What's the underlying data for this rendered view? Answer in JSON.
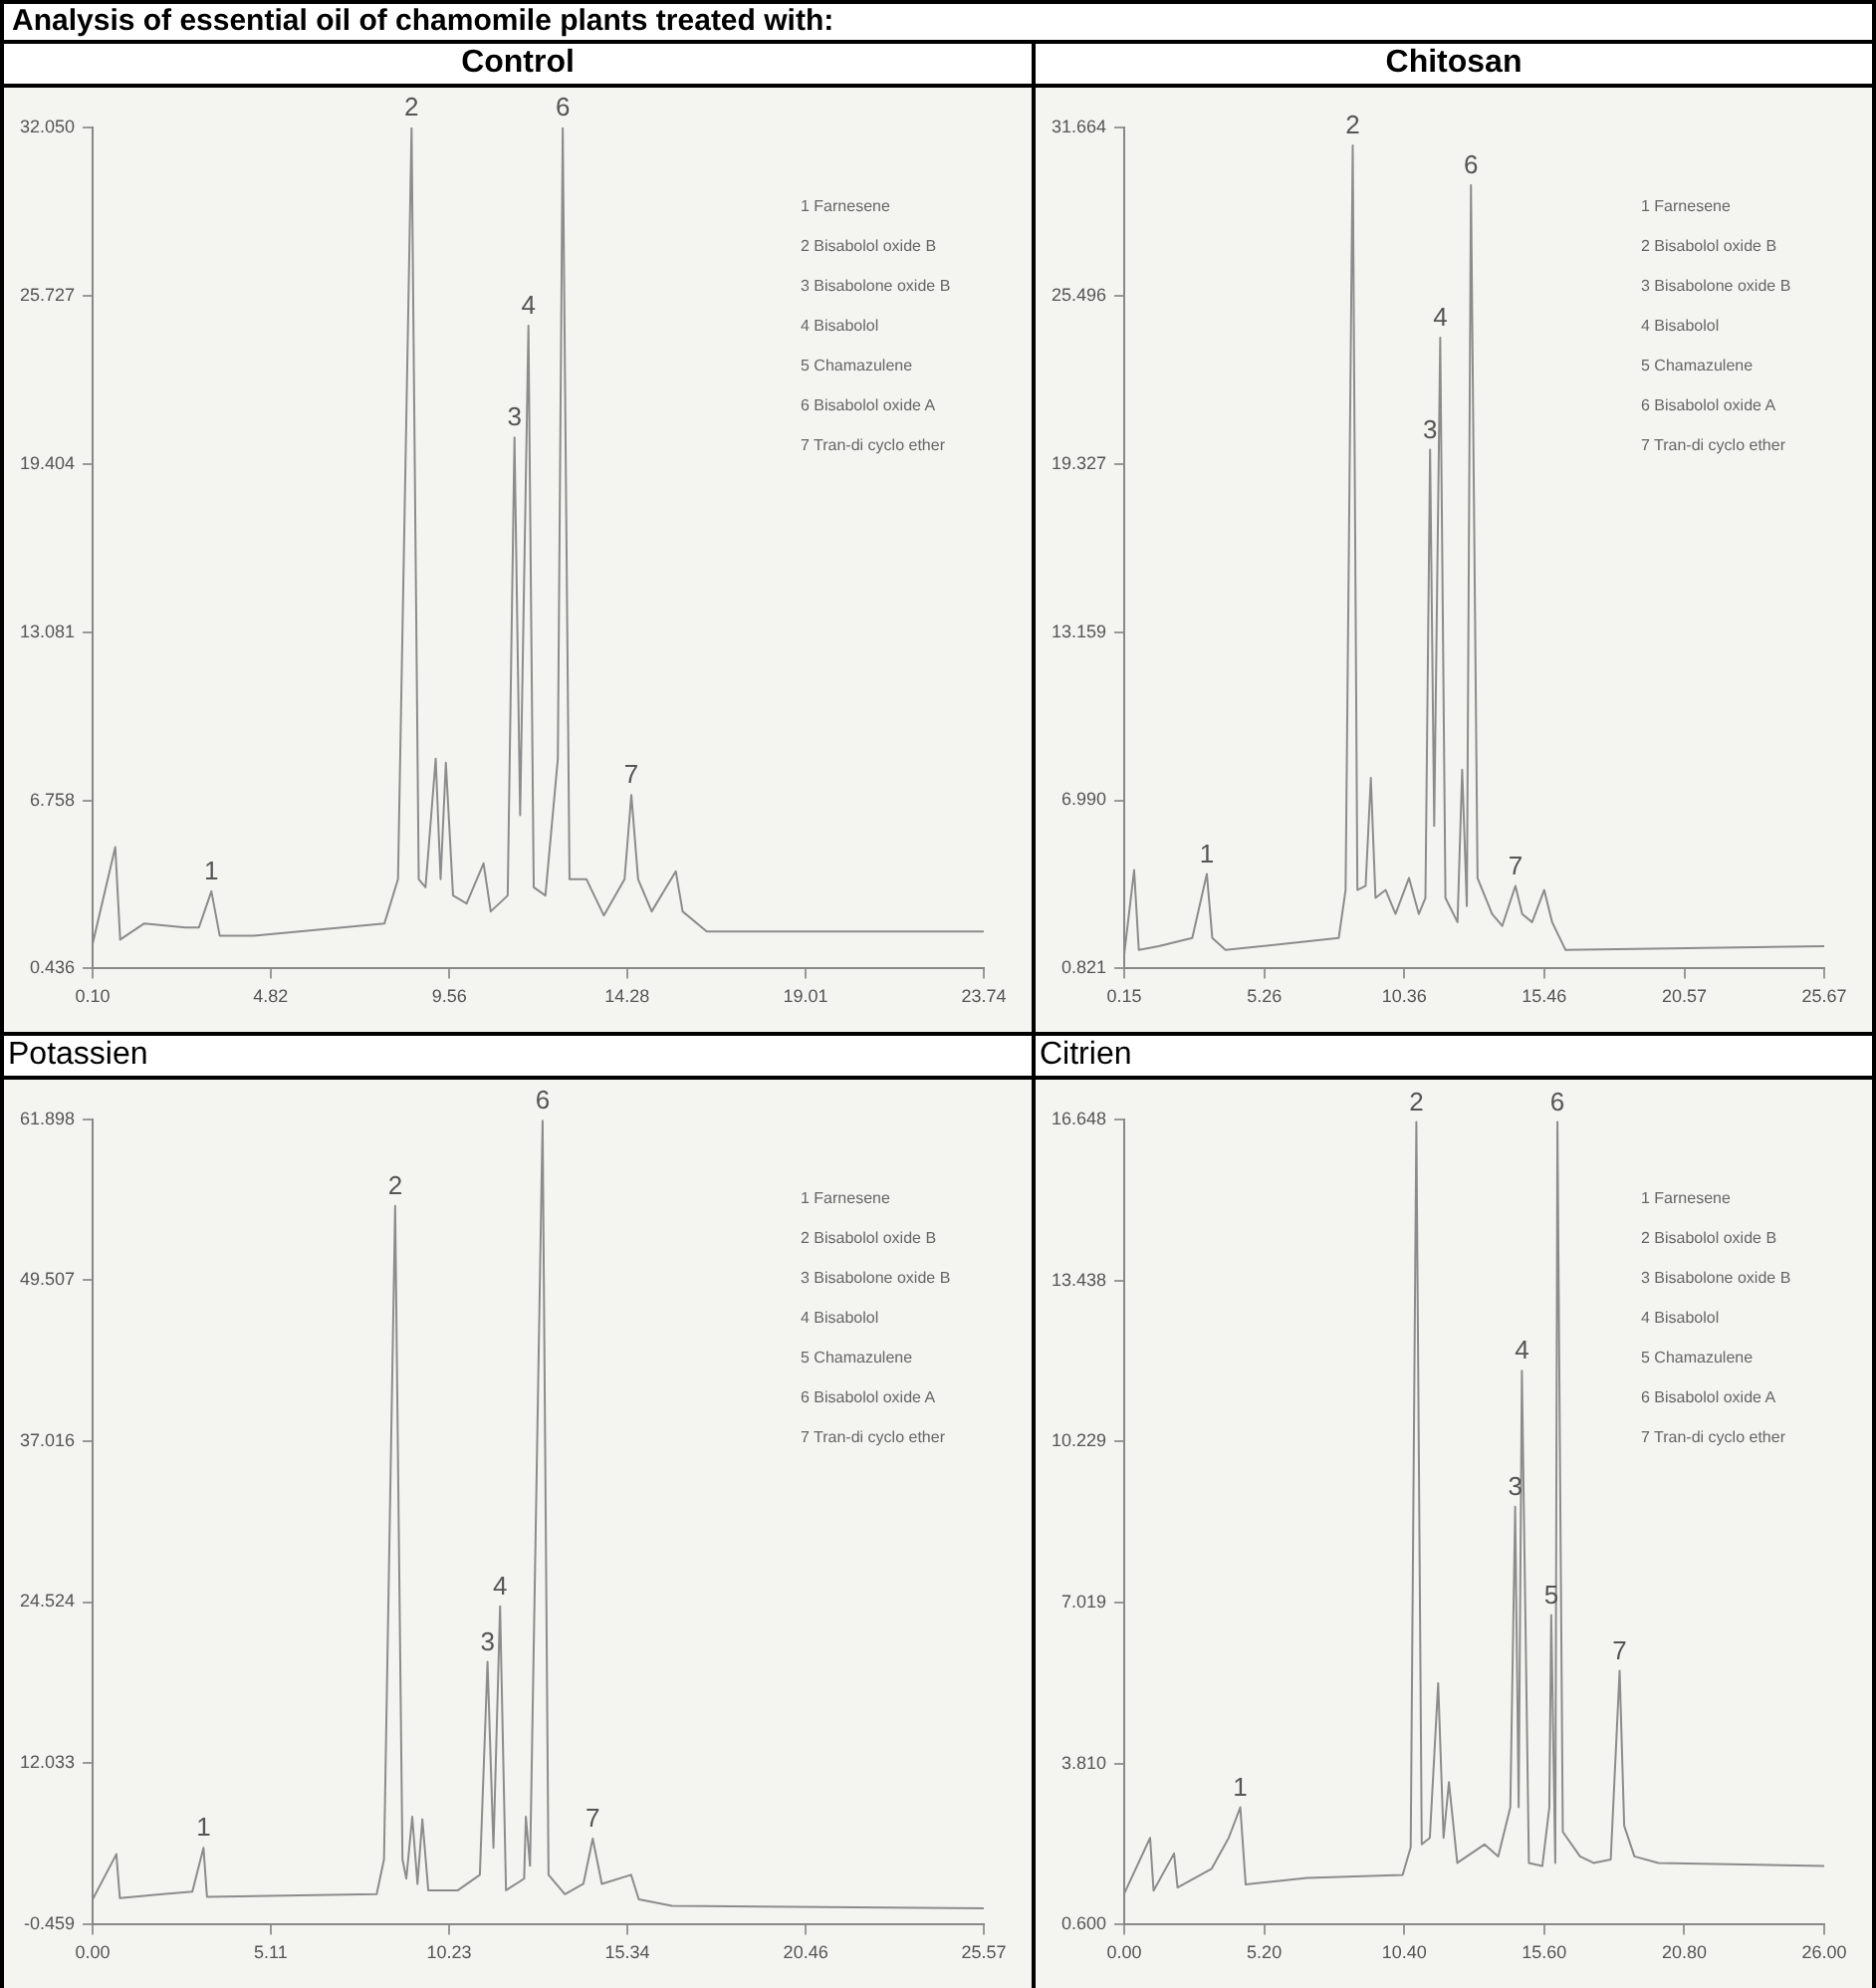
{
  "chart_data": [
    {
      "type": "line",
      "title": "Analysis of essential oil of chamomile plants treated with:",
      "subtitle": "Control",
      "x": [
        0.1,
        0.7,
        0.83,
        1.47,
        2.56,
        2.92,
        3.25,
        3.47,
        4.38,
        7.84,
        8.2,
        8.56,
        8.75,
        8.93,
        9.2,
        9.33,
        9.47,
        9.66,
        10.02,
        10.47,
        10.66,
        11.11,
        11.29,
        11.44,
        11.66,
        11.8,
        12.11,
        12.44,
        12.57,
        12.75,
        13.2,
        13.66,
        14.21,
        14.39,
        14.57,
        14.93,
        15.57,
        15.75,
        16.39,
        23.74
      ],
      "series": [
        {
          "color": "#8c8c8c",
          "values": [
            1.37,
            5.0,
            1.52,
            2.13,
            1.98,
            1.98,
            3.34,
            1.67,
            1.67,
            2.13,
            3.79,
            32.05,
            3.79,
            3.49,
            8.32,
            3.79,
            8.17,
            3.18,
            2.88,
            4.39,
            2.58,
            3.18,
            20.4,
            6.2,
            24.6,
            3.49,
            3.18,
            8.32,
            32.05,
            3.79,
            3.79,
            2.43,
            3.79,
            6.96,
            3.79,
            2.58,
            4.09,
            2.58,
            1.83,
            1.83
          ]
        }
      ],
      "xlim": [
        0.1,
        23.74
      ],
      "xticks": [
        {
          "value": 0.1,
          "label": "0.10"
        },
        4.82,
        9.56,
        14.28,
        19.01,
        23.74
      ],
      "ylim": [
        0.436,
        32.05
      ],
      "yticks": [
        0.436,
        6.758,
        13.081,
        19.404,
        25.727,
        {
          "value": 32.05,
          "label": "32.050"
        }
      ],
      "annotations": [
        {
          "text": "1",
          "x": 3.25,
          "y": 3.34
        },
        {
          "text": "2",
          "x": 8.56,
          "y": 32.05
        },
        {
          "text": "3",
          "x": 11.29,
          "y": 20.4
        },
        {
          "text": "4",
          "x": 11.66,
          "y": 24.6
        },
        {
          "text": "6",
          "x": 12.57,
          "y": 32.05
        },
        {
          "text": "7",
          "x": 14.39,
          "y": 6.96
        },
        "1 Farnesene",
        "2 Bisabolol oxide B",
        "3 Bisabolone oxide B",
        "4 Bisabolol",
        "5 Chamazulene",
        "6 Bisabolol oxide A",
        "7 Tran-di cyclo ether"
      ]
    },
    {
      "type": "line",
      "title": "Chitosan",
      "x": [
        0.15,
        0.51,
        0.68,
        1.41,
        2.63,
        3.16,
        3.36,
        3.84,
        7.97,
        8.22,
        8.48,
        8.65,
        8.95,
        9.14,
        9.31,
        9.68,
        10.04,
        10.53,
        10.89,
        11.13,
        11.3,
        11.45,
        11.67,
        11.86,
        12.3,
        12.47,
        12.64,
        12.79,
        13.03,
        13.56,
        13.93,
        14.41,
        14.66,
        15.02,
        15.46,
        15.75,
        16.24,
        25.67
      ],
      "series": [
        {
          "color": "#8c8c8c",
          "values": [
            1.35,
            4.43,
            1.5,
            1.64,
            1.94,
            4.29,
            1.94,
            1.5,
            1.94,
            3.7,
            31.01,
            3.7,
            3.85,
            7.81,
            3.41,
            3.7,
            2.82,
            4.14,
            2.82,
            3.41,
            19.85,
            6.05,
            23.96,
            3.41,
            2.52,
            8.11,
            3.11,
            29.55,
            4.14,
            2.82,
            2.38,
            3.85,
            2.82,
            2.52,
            3.7,
            2.52,
            1.5,
            1.64
          ]
        }
      ],
      "xlim": [
        0.15,
        25.67
      ],
      "xticks": [
        0.15,
        5.26,
        10.36,
        15.46,
        20.57,
        25.67
      ],
      "ylim": [
        0.821,
        31.664
      ],
      "yticks": [
        0.821,
        {
          "value": 6.99,
          "label": "6.990"
        },
        13.159,
        19.327,
        25.496,
        31.664
      ],
      "annotations": [
        {
          "text": "1",
          "x": 3.16,
          "y": 4.29
        },
        {
          "text": "2",
          "x": 8.48,
          "y": 31.01
        },
        {
          "text": "3",
          "x": 11.3,
          "y": 19.85
        },
        {
          "text": "4",
          "x": 11.67,
          "y": 23.96
        },
        {
          "text": "6",
          "x": 12.79,
          "y": 29.55
        },
        {
          "text": "7",
          "x": 14.41,
          "y": 3.85
        },
        "1 Farnesene",
        "2 Bisabolol oxide B",
        "3 Bisabolone oxide B",
        "4 Bisabolol",
        "5 Chamazulene",
        "6 Bisabolol oxide A",
        "7 Tran-di cyclo ether"
      ]
    },
    {
      "type": "line",
      "title": "Potassien",
      "x": [
        0,
        0.68,
        0.78,
        2.01,
        2.86,
        3.18,
        3.28,
        8.15,
        8.36,
        8.68,
        8.89,
        9.0,
        9.17,
        9.32,
        9.46,
        9.63,
        10.48,
        11.11,
        11.33,
        11.5,
        11.69,
        11.86,
        12.38,
        12.43,
        12.55,
        12.91,
        13.08,
        13.55,
        14.08,
        14.35,
        14.61,
        15.45,
        15.67,
        16.62,
        25.57
      ],
      "series": [
        {
          "color": "#8c8c8c",
          "values": [
            1.5,
            5.0,
            1.6,
            1.9,
            2.1,
            5.5,
            1.7,
            1.9,
            4.6,
            55.2,
            4.6,
            3.1,
            7.9,
            2.7,
            7.7,
            2.2,
            2.2,
            3.4,
            19.9,
            5.5,
            24.2,
            2.2,
            3.1,
            7.9,
            4.1,
            61.8,
            3.4,
            1.9,
            2.7,
            6.2,
            2.7,
            3.4,
            1.5,
            1.0,
            0.8
          ]
        }
      ],
      "xlim": [
        0,
        25.57
      ],
      "xticks": [
        {
          "value": 0,
          "label": "0.00"
        },
        5.11,
        10.23,
        15.34,
        20.46,
        25.57
      ],
      "ylim": [
        -0.459,
        61.898
      ],
      "yticks": [
        -0.459,
        12.033,
        24.524,
        37.016,
        49.507,
        61.898
      ],
      "annotations": [
        {
          "text": "1",
          "x": 3.18,
          "y": 5.5
        },
        {
          "text": "2",
          "x": 8.68,
          "y": 55.2
        },
        {
          "text": "3",
          "x": 11.33,
          "y": 19.9
        },
        {
          "text": "4",
          "x": 11.69,
          "y": 24.2
        },
        {
          "text": "6",
          "x": 12.91,
          "y": 61.8
        },
        {
          "text": "7",
          "x": 14.35,
          "y": 6.2
        },
        "1 Farnesene",
        "2 Bisabolol oxide B",
        "3 Bisabolone oxide B",
        "4 Bisabolol",
        "5 Chamazulene",
        "6 Bisabolol oxide A",
        "7 Tran-di cyclo ether"
      ]
    },
    {
      "type": "line",
      "title": "Citrien",
      "x": [
        0,
        0.96,
        1.09,
        1.85,
        1.98,
        3.24,
        3.88,
        4.31,
        4.51,
        6.79,
        10.34,
        10.64,
        10.85,
        11.05,
        11.35,
        11.66,
        11.86,
        12.06,
        12.37,
        13.38,
        13.89,
        14.34,
        14.52,
        14.65,
        14.77,
        15.03,
        15.53,
        15.79,
        15.86,
        16.01,
        16.09,
        16.29,
        16.93,
        17.43,
        18.07,
        18.4,
        18.57,
        18.95,
        19.84,
        26.0
      ],
      "series": [
        {
          "color": "#8c8c8c",
          "values": [
            1.22,
            2.33,
            1.28,
            2.02,
            1.34,
            1.71,
            2.33,
            2.94,
            1.4,
            1.53,
            1.59,
            2.14,
            16.6,
            2.2,
            2.33,
            5.41,
            2.33,
            3.44,
            1.83,
            2.2,
            1.96,
            2.94,
            8.93,
            2.94,
            11.64,
            1.83,
            1.77,
            2.94,
            6.77,
            1.83,
            16.6,
            2.45,
            1.96,
            1.83,
            1.9,
            5.66,
            2.57,
            1.96,
            1.83,
            1.77
          ]
        }
      ],
      "xlim": [
        0,
        26.0
      ],
      "xticks": [
        {
          "value": 0,
          "label": "0.00"
        },
        {
          "value": 5.2,
          "label": "5.20"
        },
        {
          "value": 10.4,
          "label": "10.40"
        },
        {
          "value": 15.6,
          "label": "15.60"
        },
        {
          "value": 20.8,
          "label": "20.80"
        },
        {
          "value": 26.0,
          "label": "26.00"
        }
      ],
      "ylim": [
        0.6,
        16.648
      ],
      "yticks": [
        {
          "value": 0.6,
          "label": "0.600"
        },
        {
          "value": 3.81,
          "label": "3.810"
        },
        7.019,
        10.229,
        13.438,
        16.648
      ],
      "annotations": [
        {
          "text": "1",
          "x": 4.31,
          "y": 2.94
        },
        {
          "text": "2",
          "x": 10.85,
          "y": 16.6
        },
        {
          "text": "3",
          "x": 14.52,
          "y": 8.93
        },
        {
          "text": "4",
          "x": 14.77,
          "y": 11.64
        },
        {
          "text": "5",
          "x": 15.86,
          "y": 6.77
        },
        {
          "text": "6",
          "x": 16.09,
          "y": 16.6
        },
        {
          "text": "7",
          "x": 18.4,
          "y": 5.66
        },
        "1 Farnesene",
        "2 Bisabolol oxide B",
        "3 Bisabolone oxide B",
        "4 Bisabolol",
        "5 Chamazulene",
        "6 Bisabolol oxide A",
        "7 Tran-di cyclo ether"
      ]
    }
  ]
}
